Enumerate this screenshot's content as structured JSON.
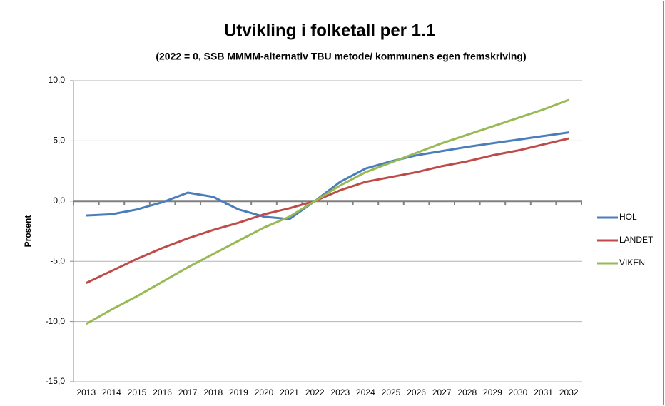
{
  "chart_data": {
    "type": "line",
    "title": "Utvikling i folketall per 1.1",
    "subtitle": "(2022 = 0, SSB MMMM-alternativ TBU metode/ kommunens egen fremskriving)",
    "y_label": "Prosent",
    "categories": [
      "2013",
      "2014",
      "2015",
      "2016",
      "2017",
      "2018",
      "2019",
      "2020",
      "2021",
      "2022",
      "2023",
      "2024",
      "2025",
      "2026",
      "2027",
      "2028",
      "2029",
      "2030",
      "2031",
      "2032"
    ],
    "series": [
      {
        "name": "HOL",
        "color": "#4a7ebb",
        "values": [
          -1.2,
          -1.1,
          -0.7,
          -0.1,
          0.7,
          0.35,
          -0.7,
          -1.3,
          -1.5,
          0,
          1.6,
          2.7,
          3.3,
          3.8,
          4.15,
          4.5,
          4.8,
          5.1,
          5.4,
          5.7
        ]
      },
      {
        "name": "LANDET",
        "color": "#be4b48",
        "values": [
          -6.8,
          -5.8,
          -4.8,
          -3.9,
          -3.1,
          -2.4,
          -1.8,
          -1.1,
          -0.6,
          0,
          0.9,
          1.6,
          2.0,
          2.4,
          2.9,
          3.3,
          3.8,
          4.2,
          4.7,
          5.2
        ]
      },
      {
        "name": "VIKEN",
        "color": "#98b954",
        "values": [
          -10.2,
          -9.0,
          -7.9,
          -6.7,
          -5.5,
          -4.4,
          -3.3,
          -2.2,
          -1.3,
          0,
          1.3,
          2.4,
          3.2,
          4.0,
          4.8,
          5.5,
          6.2,
          6.9,
          7.6,
          8.4
        ]
      }
    ],
    "ylim": [
      -15,
      10
    ],
    "yticks": [
      {
        "value": -15,
        "label": "-15,0"
      },
      {
        "value": -10,
        "label": "-10,0"
      },
      {
        "value": -5,
        "label": "-5,0"
      },
      {
        "value": 0,
        "label": "0,0"
      },
      {
        "value": 5,
        "label": "5,0"
      },
      {
        "value": 10,
        "label": "10,0"
      }
    ],
    "grid": true,
    "legend": "right"
  }
}
